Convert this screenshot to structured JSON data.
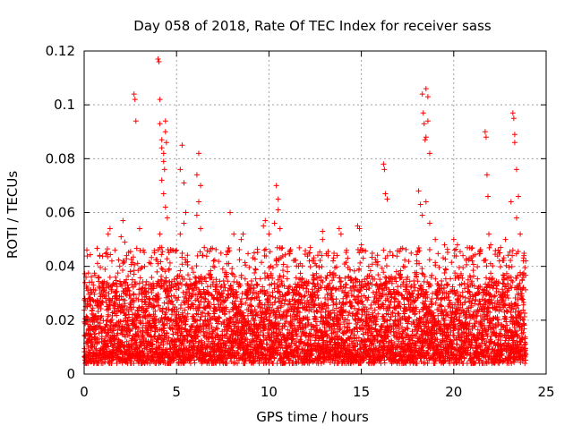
{
  "chart_data": {
    "type": "scatter",
    "title": "Day 058 of 2018, Rate Of TEC Index for receiver sass",
    "xlabel": "GPS time / hours",
    "ylabel": "ROTI / TECUs",
    "xlim": [
      0,
      25
    ],
    "ylim": [
      0,
      0.12
    ],
    "xticks": [
      0,
      5,
      10,
      15,
      20,
      25
    ],
    "xtick_labels": [
      "0",
      "5",
      "10",
      "15",
      "20",
      "25"
    ],
    "yticks": [
      0,
      0.02,
      0.04,
      0.06,
      0.08,
      0.1,
      0.12
    ],
    "ytick_labels": [
      "0",
      "0.02",
      "0.04",
      "0.06",
      "0.08",
      "0.1",
      "0.12"
    ],
    "grid": true,
    "marker": "+",
    "series": [
      {
        "name": "ROTI",
        "color": "#ff0000",
        "points": [
          [
            0.1,
            0.036
          ],
          [
            0.2,
            0.031
          ],
          [
            0.3,
            0.028
          ],
          [
            0.5,
            0.033
          ],
          [
            0.8,
            0.025
          ],
          [
            1.0,
            0.029
          ],
          [
            1.2,
            0.045
          ],
          [
            1.3,
            0.052
          ],
          [
            1.4,
            0.054
          ],
          [
            1.5,
            0.042
          ],
          [
            1.7,
            0.036
          ],
          [
            2.0,
            0.051
          ],
          [
            2.1,
            0.057
          ],
          [
            2.2,
            0.049
          ],
          [
            2.3,
            0.044
          ],
          [
            2.5,
            0.038
          ],
          [
            2.7,
            0.104
          ],
          [
            2.75,
            0.102
          ],
          [
            2.8,
            0.094
          ],
          [
            3.0,
            0.054
          ],
          [
            3.2,
            0.046
          ],
          [
            3.6,
            0.041
          ],
          [
            3.8,
            0.045
          ],
          [
            4.0,
            0.117
          ],
          [
            4.05,
            0.116
          ],
          [
            4.1,
            0.102
          ],
          [
            4.1,
            0.093
          ],
          [
            4.2,
            0.087
          ],
          [
            4.2,
            0.084
          ],
          [
            4.3,
            0.082
          ],
          [
            4.3,
            0.079
          ],
          [
            4.35,
            0.076
          ],
          [
            4.4,
            0.094
          ],
          [
            4.4,
            0.09
          ],
          [
            4.45,
            0.086
          ],
          [
            4.2,
            0.072
          ],
          [
            4.3,
            0.067
          ],
          [
            4.4,
            0.062
          ],
          [
            4.5,
            0.058
          ],
          [
            4.1,
            0.052
          ],
          [
            4.2,
            0.047
          ],
          [
            4.0,
            0.041
          ],
          [
            5.0,
            0.046
          ],
          [
            5.3,
            0.085
          ],
          [
            5.2,
            0.076
          ],
          [
            5.4,
            0.071
          ],
          [
            5.5,
            0.06
          ],
          [
            5.4,
            0.056
          ],
          [
            5.2,
            0.052
          ],
          [
            6.1,
            0.074
          ],
          [
            6.2,
            0.082
          ],
          [
            6.3,
            0.07
          ],
          [
            6.2,
            0.064
          ],
          [
            6.1,
            0.059
          ],
          [
            6.3,
            0.054
          ],
          [
            6.5,
            0.047
          ],
          [
            7.0,
            0.042
          ],
          [
            7.5,
            0.039
          ],
          [
            7.9,
            0.06
          ],
          [
            8.1,
            0.052
          ],
          [
            8.5,
            0.05
          ],
          [
            8.6,
            0.052
          ],
          [
            9.2,
            0.045
          ],
          [
            9.7,
            0.055
          ],
          [
            9.8,
            0.057
          ],
          [
            10.0,
            0.052
          ],
          [
            10.3,
            0.056
          ],
          [
            10.4,
            0.07
          ],
          [
            10.5,
            0.065
          ],
          [
            10.5,
            0.061
          ],
          [
            10.6,
            0.054
          ],
          [
            10.1,
            0.04
          ],
          [
            10.4,
            0.042
          ],
          [
            11.0,
            0.038
          ],
          [
            11.6,
            0.04
          ],
          [
            12.2,
            0.045
          ],
          [
            12.5,
            0.041
          ],
          [
            12.9,
            0.053
          ],
          [
            12.9,
            0.05
          ],
          [
            13.2,
            0.044
          ],
          [
            13.8,
            0.054
          ],
          [
            13.9,
            0.052
          ],
          [
            14.2,
            0.046
          ],
          [
            14.8,
            0.055
          ],
          [
            14.9,
            0.054
          ],
          [
            15.0,
            0.048
          ],
          [
            15.1,
            0.043
          ],
          [
            15.4,
            0.04
          ],
          [
            16.2,
            0.078
          ],
          [
            16.25,
            0.076
          ],
          [
            16.3,
            0.067
          ],
          [
            16.4,
            0.065
          ],
          [
            16.2,
            0.046
          ],
          [
            16.3,
            0.043
          ],
          [
            16.9,
            0.038
          ],
          [
            17.5,
            0.036
          ],
          [
            18.0,
            0.042
          ],
          [
            18.1,
            0.068
          ],
          [
            18.2,
            0.063
          ],
          [
            18.3,
            0.104
          ],
          [
            18.35,
            0.097
          ],
          [
            18.4,
            0.093
          ],
          [
            18.45,
            0.087
          ],
          [
            18.5,
            0.106
          ],
          [
            18.5,
            0.088
          ],
          [
            18.6,
            0.103
          ],
          [
            18.6,
            0.094
          ],
          [
            18.7,
            0.082
          ],
          [
            18.5,
            0.064
          ],
          [
            18.3,
            0.059
          ],
          [
            18.7,
            0.056
          ],
          [
            19.0,
            0.05
          ],
          [
            19.5,
            0.048
          ],
          [
            20.0,
            0.05
          ],
          [
            20.2,
            0.048
          ],
          [
            20.5,
            0.044
          ],
          [
            21.0,
            0.042
          ],
          [
            21.7,
            0.09
          ],
          [
            21.75,
            0.088
          ],
          [
            21.8,
            0.074
          ],
          [
            21.85,
            0.066
          ],
          [
            21.9,
            0.052
          ],
          [
            22.0,
            0.048
          ],
          [
            22.4,
            0.046
          ],
          [
            22.8,
            0.05
          ],
          [
            23.1,
            0.064
          ],
          [
            23.2,
            0.097
          ],
          [
            23.25,
            0.095
          ],
          [
            23.3,
            0.089
          ],
          [
            23.3,
            0.086
          ],
          [
            23.4,
            0.076
          ],
          [
            23.5,
            0.066
          ],
          [
            23.4,
            0.058
          ],
          [
            23.6,
            0.052
          ],
          [
            23.2,
            0.046
          ],
          [
            23.8,
            0.044
          ],
          [
            23.9,
            0.042
          ],
          [
            23.7,
            0.035
          ]
        ]
      }
    ],
    "baseline_band": {
      "x_range": [
        0,
        23.9
      ],
      "y_typical_range": [
        0.005,
        0.035
      ],
      "note": "dense continuous cloud of '+' markers between about 0.005 and 0.035 TECUs across the whole day"
    }
  }
}
